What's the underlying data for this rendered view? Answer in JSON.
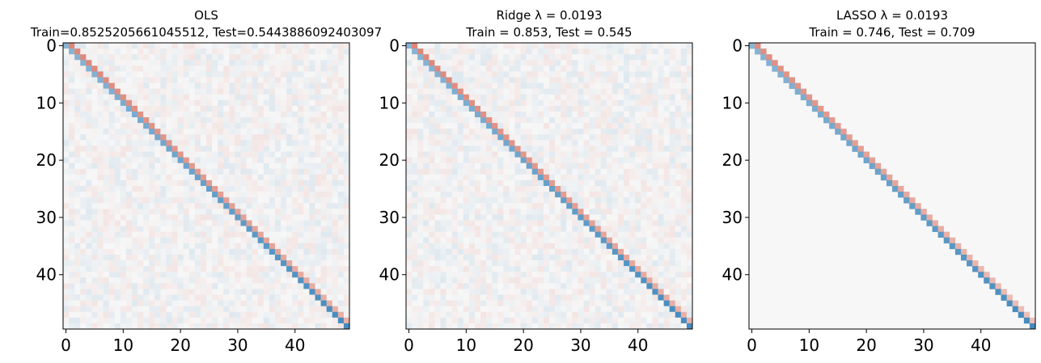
{
  "chart_data": [
    {
      "type": "heatmap",
      "title": "OLS",
      "subtitle": "Train=0.8525205661045512, Test=0.5443886092403097",
      "size": 50,
      "xticks": [
        0,
        10,
        20,
        30,
        40
      ],
      "yticks": [
        0,
        10,
        20,
        30,
        40
      ],
      "xlim": [
        -0.5,
        49.5
      ],
      "ylim": [
        49.5,
        -0.5
      ],
      "colormap": "diverging-blue-red",
      "diagonal_color": "#2f7fb8",
      "superdiagonal_color": "#f4a582",
      "offdiag_noise": 0.12,
      "grid": false
    },
    {
      "type": "heatmap",
      "title": "Ridge λ = 0.0193",
      "subtitle": "Train = 0.853, Test = 0.545",
      "size": 50,
      "xticks": [
        0,
        10,
        20,
        30,
        40
      ],
      "yticks": [
        0,
        10,
        20,
        30,
        40
      ],
      "xlim": [
        -0.5,
        49.5
      ],
      "ylim": [
        49.5,
        -0.5
      ],
      "colormap": "diverging-blue-red",
      "diagonal_color": "#2f7fb8",
      "superdiagonal_color": "#f4a582",
      "offdiag_noise": 0.12,
      "grid": false
    },
    {
      "type": "heatmap",
      "title": "LASSO λ = 0.0193",
      "subtitle": "Train = 0.746, Test = 0.709",
      "size": 50,
      "xticks": [
        0,
        10,
        20,
        30,
        40
      ],
      "yticks": [
        0,
        10,
        20,
        30,
        40
      ],
      "xlim": [
        -0.5,
        49.5
      ],
      "ylim": [
        49.5,
        -0.5
      ],
      "colormap": "diverging-blue-red",
      "diagonal_color": "#2f7fb8",
      "superdiagonal_color": "#f4a582",
      "offdiag_noise": 0.0,
      "grid": false
    }
  ]
}
